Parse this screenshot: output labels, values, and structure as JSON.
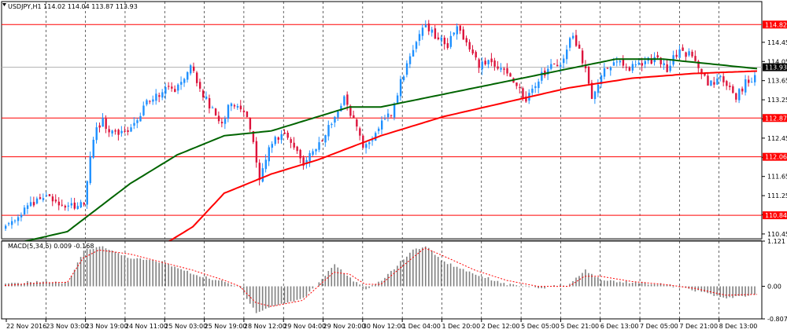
{
  "chart_data": [
    {
      "type": "candlestick",
      "symbol_header": "USDJPY,H1  114.02 114.04 113.87 113.93",
      "ylim": [
        110.35,
        115.3
      ],
      "y_ticks": [
        "114.45",
        "114.05",
        "113.65",
        "113.25",
        "112.85",
        "112.45",
        "112.05",
        "111.65",
        "111.25",
        "110.85",
        "110.45"
      ],
      "current_price": "113.93",
      "levels": [
        {
          "label": "114.82",
          "value": 114.82
        },
        {
          "label": "112.87",
          "value": 112.87
        },
        {
          "label": "112.06",
          "value": 112.06
        },
        {
          "label": "110.84",
          "value": 110.84
        }
      ],
      "x_labels": [
        "22 Nov 2016",
        "23 Nov 03:00",
        "23 Nov 19:00",
        "24 Nov 11:00",
        "25 Nov 03:00",
        "25 Nov 19:00",
        "28 Nov 12:00",
        "29 Nov 04:00",
        "29 Nov 20:00",
        "30 Nov 12:00",
        "1 Dec 04:00",
        "1 Dec 20:00",
        "2 Dec 12:00",
        "5 Dec 05:00",
        "5 Dec 21:00",
        "6 Dec 13:00",
        "7 Dec 05:00",
        "7 Dec 21:00",
        "8 Dec 13:00"
      ],
      "price_path": [
        [
          0,
          110.6
        ],
        [
          5,
          110.9
        ],
        [
          12,
          111.2
        ],
        [
          18,
          111.1
        ],
        [
          22,
          111.0
        ],
        [
          25,
          111.1
        ],
        [
          28,
          112.5
        ],
        [
          31,
          112.8
        ],
        [
          35,
          112.5
        ],
        [
          40,
          112.7
        ],
        [
          45,
          113.2
        ],
        [
          50,
          113.4
        ],
        [
          54,
          113.5
        ],
        [
          56,
          113.6
        ],
        [
          59,
          113.9
        ],
        [
          62,
          113.5
        ],
        [
          66,
          113.0
        ],
        [
          69,
          112.8
        ],
        [
          72,
          113.2
        ],
        [
          76,
          113.0
        ],
        [
          78,
          112.7
        ],
        [
          81,
          111.6
        ],
        [
          84,
          112.3
        ],
        [
          88,
          112.5
        ],
        [
          92,
          112.3
        ],
        [
          95,
          111.8
        ],
        [
          98,
          112.2
        ],
        [
          101,
          112.4
        ],
        [
          105,
          112.9
        ],
        [
          108,
          113.3
        ],
        [
          111,
          112.8
        ],
        [
          114,
          112.3
        ],
        [
          117,
          112.4
        ],
        [
          120,
          112.9
        ],
        [
          123,
          113.0
        ],
        [
          127,
          113.8
        ],
        [
          131,
          114.4
        ],
        [
          134,
          114.8
        ],
        [
          137,
          114.6
        ],
        [
          141,
          114.4
        ],
        [
          144,
          114.8
        ],
        [
          147,
          114.4
        ],
        [
          151,
          114.0
        ],
        [
          155,
          114.0
        ],
        [
          159,
          113.8
        ],
        [
          163,
          113.6
        ],
        [
          166,
          113.2
        ],
        [
          169,
          113.6
        ],
        [
          173,
          113.9
        ],
        [
          177,
          114.0
        ],
        [
          181,
          114.6
        ],
        [
          185,
          113.9
        ],
        [
          187,
          113.3
        ],
        [
          191,
          113.9
        ],
        [
          195,
          114.0
        ],
        [
          199,
          113.9
        ],
        [
          203,
          114.0
        ],
        [
          207,
          114.1
        ],
        [
          211,
          113.9
        ],
        [
          215,
          114.3
        ],
        [
          218,
          114.2
        ],
        [
          221,
          113.9
        ],
        [
          224,
          113.6
        ],
        [
          228,
          113.7
        ],
        [
          231,
          113.5
        ],
        [
          233,
          113.3
        ],
        [
          236,
          113.6
        ],
        [
          238,
          113.6
        ],
        [
          240,
          114.1
        ]
      ],
      "ma_fast_path": [
        [
          0,
          110.2
        ],
        [
          20,
          110.5
        ],
        [
          40,
          111.5
        ],
        [
          55,
          112.1
        ],
        [
          70,
          112.5
        ],
        [
          85,
          112.6
        ],
        [
          100,
          112.9
        ],
        [
          110,
          113.1
        ],
        [
          120,
          113.1
        ],
        [
          135,
          113.3
        ],
        [
          150,
          113.5
        ],
        [
          165,
          113.7
        ],
        [
          180,
          113.9
        ],
        [
          195,
          114.1
        ],
        [
          210,
          114.1
        ],
        [
          225,
          114.0
        ],
        [
          240,
          113.9
        ]
      ],
      "ma_slow_path": [
        [
          50,
          110.2
        ],
        [
          60,
          110.6
        ],
        [
          70,
          111.3
        ],
        [
          85,
          111.7
        ],
        [
          100,
          112.0
        ],
        [
          120,
          112.5
        ],
        [
          140,
          112.9
        ],
        [
          160,
          113.2
        ],
        [
          180,
          113.5
        ],
        [
          200,
          113.7
        ],
        [
          220,
          113.8
        ],
        [
          240,
          113.85
        ]
      ],
      "bars_count": 240
    },
    {
      "type": "histogram",
      "indicator_header": "MACD(5,34,5) 0.009 -0.168",
      "ylim": [
        -0.807,
        1.121
      ],
      "y_ticks": [
        "1.121",
        "0.00",
        "-0.807"
      ],
      "hist_path": [
        [
          0,
          0.05
        ],
        [
          10,
          0.12
        ],
        [
          20,
          0.08
        ],
        [
          25,
          0.9
        ],
        [
          30,
          1.0
        ],
        [
          40,
          0.7
        ],
        [
          50,
          0.6
        ],
        [
          60,
          0.3
        ],
        [
          70,
          0.1
        ],
        [
          75,
          -0.05
        ],
        [
          80,
          -0.65
        ],
        [
          85,
          -0.5
        ],
        [
          95,
          -0.3
        ],
        [
          100,
          0.1
        ],
        [
          105,
          0.55
        ],
        [
          110,
          0.2
        ],
        [
          115,
          -0.1
        ],
        [
          120,
          0.15
        ],
        [
          130,
          0.9
        ],
        [
          134,
          1.0
        ],
        [
          140,
          0.6
        ],
        [
          150,
          0.3
        ],
        [
          160,
          0.05
        ],
        [
          170,
          -0.05
        ],
        [
          180,
          0.05
        ],
        [
          185,
          0.4
        ],
        [
          190,
          0.15
        ],
        [
          200,
          0.1
        ],
        [
          210,
          0.05
        ],
        [
          220,
          -0.1
        ],
        [
          230,
          -0.3
        ],
        [
          240,
          -0.2
        ]
      ],
      "signal_path": [
        [
          0,
          0.02
        ],
        [
          10,
          0.08
        ],
        [
          20,
          0.1
        ],
        [
          25,
          0.7
        ],
        [
          30,
          0.9
        ],
        [
          40,
          0.8
        ],
        [
          50,
          0.6
        ],
        [
          60,
          0.4
        ],
        [
          70,
          0.15
        ],
        [
          75,
          0.0
        ],
        [
          80,
          -0.4
        ],
        [
          85,
          -0.5
        ],
        [
          95,
          -0.35
        ],
        [
          100,
          0.0
        ],
        [
          105,
          0.35
        ],
        [
          110,
          0.3
        ],
        [
          115,
          0.05
        ],
        [
          120,
          0.05
        ],
        [
          130,
          0.7
        ],
        [
          134,
          0.95
        ],
        [
          140,
          0.75
        ],
        [
          150,
          0.4
        ],
        [
          160,
          0.15
        ],
        [
          170,
          0.0
        ],
        [
          180,
          0.0
        ],
        [
          185,
          0.25
        ],
        [
          190,
          0.25
        ],
        [
          200,
          0.12
        ],
        [
          210,
          0.05
        ],
        [
          220,
          -0.05
        ],
        [
          230,
          -0.22
        ],
        [
          240,
          -0.2
        ]
      ]
    }
  ],
  "colors": {
    "background": "#ffffff",
    "axis": "#000000",
    "grid": "#000000",
    "bull": "#1e90ff",
    "bear": "#dc143c",
    "ma_fast": "#006400",
    "ma_slow": "#ff0000",
    "level": "#ff0000",
    "price_tag": "#000000",
    "hist": "#808080",
    "signal": "#ff0000"
  }
}
